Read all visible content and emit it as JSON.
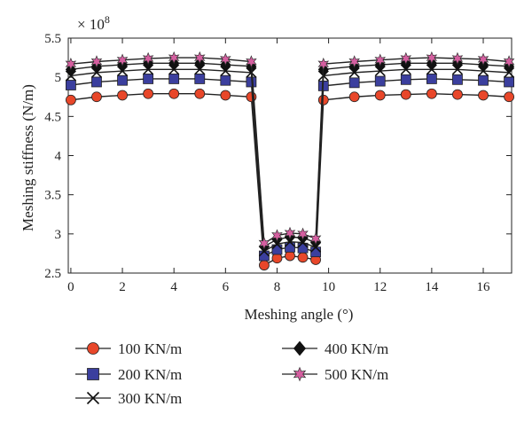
{
  "chart_data": {
    "type": "line",
    "title": "",
    "xlabel": "Meshing angle (°)",
    "ylabel": "Meshing stiffness (N/m)",
    "exponent_label": "× 10",
    "exponent_power": "8",
    "xlim": [
      -0.1,
      17.1
    ],
    "ylim": [
      2.5,
      5.5
    ],
    "xticks": [
      0,
      2,
      4,
      6,
      8,
      10,
      12,
      14,
      16
    ],
    "yticks": [
      2.5,
      3,
      3.5,
      4,
      4.5,
      5,
      5.5
    ],
    "xtick_labels": [
      "0",
      "2",
      "4",
      "6",
      "8",
      "10",
      "12",
      "14",
      "16"
    ],
    "ytick_labels": [
      "2.5",
      "3",
      "3.5",
      "4",
      "4.5",
      "5",
      "5.5"
    ],
    "x": [
      0,
      1,
      2,
      3,
      4,
      5,
      6,
      7,
      7.5,
      8,
      8.5,
      9,
      9.5,
      9.8,
      11,
      12,
      13,
      14,
      15,
      16,
      17
    ],
    "series": [
      {
        "name": "100 KN/m",
        "label": "100 KN/m",
        "marker": "circle",
        "color": "#e8472a",
        "values": [
          4.71,
          4.75,
          4.77,
          4.79,
          4.79,
          4.79,
          4.77,
          4.75,
          2.6,
          2.69,
          2.72,
          2.7,
          2.67,
          4.71,
          4.75,
          4.77,
          4.78,
          4.79,
          4.78,
          4.77,
          4.75
        ]
      },
      {
        "name": "200 KN/m",
        "label": "200 KN/m",
        "marker": "square",
        "color": "#3b3f9e",
        "values": [
          4.9,
          4.94,
          4.96,
          4.98,
          4.98,
          4.98,
          4.96,
          4.94,
          2.72,
          2.8,
          2.83,
          2.82,
          2.77,
          4.89,
          4.93,
          4.95,
          4.97,
          4.98,
          4.97,
          4.96,
          4.94
        ]
      },
      {
        "name": "300 KN/m",
        "label": "300 KN/m",
        "marker": "x",
        "color": "#111111",
        "values": [
          5.02,
          5.06,
          5.08,
          5.1,
          5.1,
          5.1,
          5.08,
          5.06,
          2.78,
          2.87,
          2.9,
          2.89,
          2.83,
          5.02,
          5.06,
          5.08,
          5.1,
          5.1,
          5.1,
          5.08,
          5.06
        ]
      },
      {
        "name": "400 KN/m",
        "label": "400 KN/m",
        "marker": "diamond",
        "color": "#111111",
        "values": [
          5.1,
          5.14,
          5.16,
          5.18,
          5.18,
          5.18,
          5.16,
          5.14,
          2.84,
          2.93,
          2.96,
          2.95,
          2.89,
          5.1,
          5.14,
          5.16,
          5.18,
          5.18,
          5.18,
          5.16,
          5.14
        ]
      },
      {
        "name": "500 KN/m",
        "label": "500 KN/m",
        "marker": "star",
        "color": "#d55fa0",
        "values": [
          5.17,
          5.2,
          5.22,
          5.24,
          5.25,
          5.25,
          5.23,
          5.2,
          2.88,
          2.98,
          3.01,
          3.0,
          2.94,
          5.17,
          5.2,
          5.22,
          5.24,
          5.25,
          5.24,
          5.23,
          5.2
        ]
      }
    ],
    "legend": "bottom, two columns",
    "grid": false
  }
}
